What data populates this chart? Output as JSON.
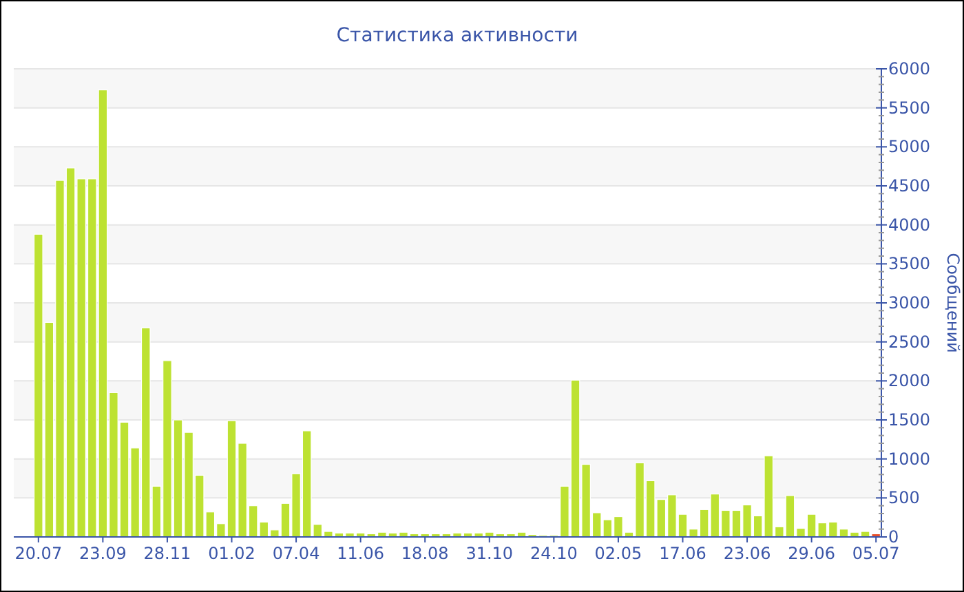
{
  "chart_data": {
    "type": "bar",
    "title": "Статистика активности",
    "ylabel": "Сообщений",
    "categories": [
      "20.07",
      null,
      null,
      null,
      null,
      null,
      "23.09",
      null,
      null,
      null,
      null,
      null,
      "28.11",
      null,
      null,
      null,
      null,
      null,
      "01.02",
      null,
      null,
      null,
      null,
      null,
      "07.04",
      null,
      null,
      null,
      null,
      null,
      "11.06",
      null,
      null,
      null,
      null,
      null,
      "18.08",
      null,
      null,
      null,
      null,
      null,
      "31.10",
      null,
      null,
      null,
      null,
      null,
      "24.10",
      null,
      null,
      null,
      null,
      null,
      "02.05",
      null,
      null,
      null,
      null,
      null,
      "17.06",
      null,
      null,
      null,
      null,
      null,
      "23.06",
      null,
      null,
      null,
      null,
      null,
      "29.06",
      null,
      null,
      null,
      null,
      null,
      "05.07"
    ],
    "values": [
      3880,
      2750,
      4570,
      4730,
      4590,
      4590,
      5730,
      1850,
      1470,
      1140,
      2680,
      650,
      2260,
      1500,
      1340,
      790,
      320,
      170,
      1490,
      1200,
      400,
      190,
      90,
      430,
      810,
      1360,
      160,
      70,
      50,
      50,
      50,
      40,
      60,
      50,
      60,
      40,
      40,
      40,
      40,
      50,
      50,
      50,
      60,
      40,
      40,
      60,
      30,
      20,
      20,
      650,
      2010,
      930,
      310,
      220,
      260,
      60,
      950,
      720,
      480,
      540,
      290,
      100,
      350,
      550,
      340,
      340,
      410,
      270,
      1040,
      130,
      530,
      110,
      290,
      180,
      190,
      100,
      60,
      70,
      40
    ],
    "colors": [
      "#bde232",
      "#bde232",
      "#bde232",
      "#bde232",
      "#bde232",
      "#bde232",
      "#bde232",
      "#bde232",
      "#bde232",
      "#bde232",
      "#bde232",
      "#bde232",
      "#bde232",
      "#bde232",
      "#bde232",
      "#bde232",
      "#bde232",
      "#bde232",
      "#bde232",
      "#bde232",
      "#bde232",
      "#bde232",
      "#bde232",
      "#bde232",
      "#bde232",
      "#bde232",
      "#bde232",
      "#bde232",
      "#bde232",
      "#bde232",
      "#bde232",
      "#bde232",
      "#bde232",
      "#bde232",
      "#bde232",
      "#bde232",
      "#bde232",
      "#bde232",
      "#bde232",
      "#bde232",
      "#bde232",
      "#bde232",
      "#bde232",
      "#bde232",
      "#bde232",
      "#bde232",
      "#bde232",
      "#bde232",
      "#bde232",
      "#bde232",
      "#bde232",
      "#bde232",
      "#bde232",
      "#bde232",
      "#bde232",
      "#bde232",
      "#bde232",
      "#bde232",
      "#bde232",
      "#bde232",
      "#bde232",
      "#bde232",
      "#bde232",
      "#bde232",
      "#bde232",
      "#bde232",
      "#bde232",
      "#bde232",
      "#bde232",
      "#bde232",
      "#bde232",
      "#bde232",
      "#bde232",
      "#bde232",
      "#bde232",
      "#bde232",
      "#bde232",
      "#bde232",
      "#e8502a"
    ],
    "ylim": [
      0,
      6000
    ],
    "yticks": [
      0,
      500,
      1000,
      1500,
      2000,
      2500,
      3000,
      3500,
      4000,
      4500,
      5000,
      5500,
      6000
    ],
    "grid": "y"
  }
}
